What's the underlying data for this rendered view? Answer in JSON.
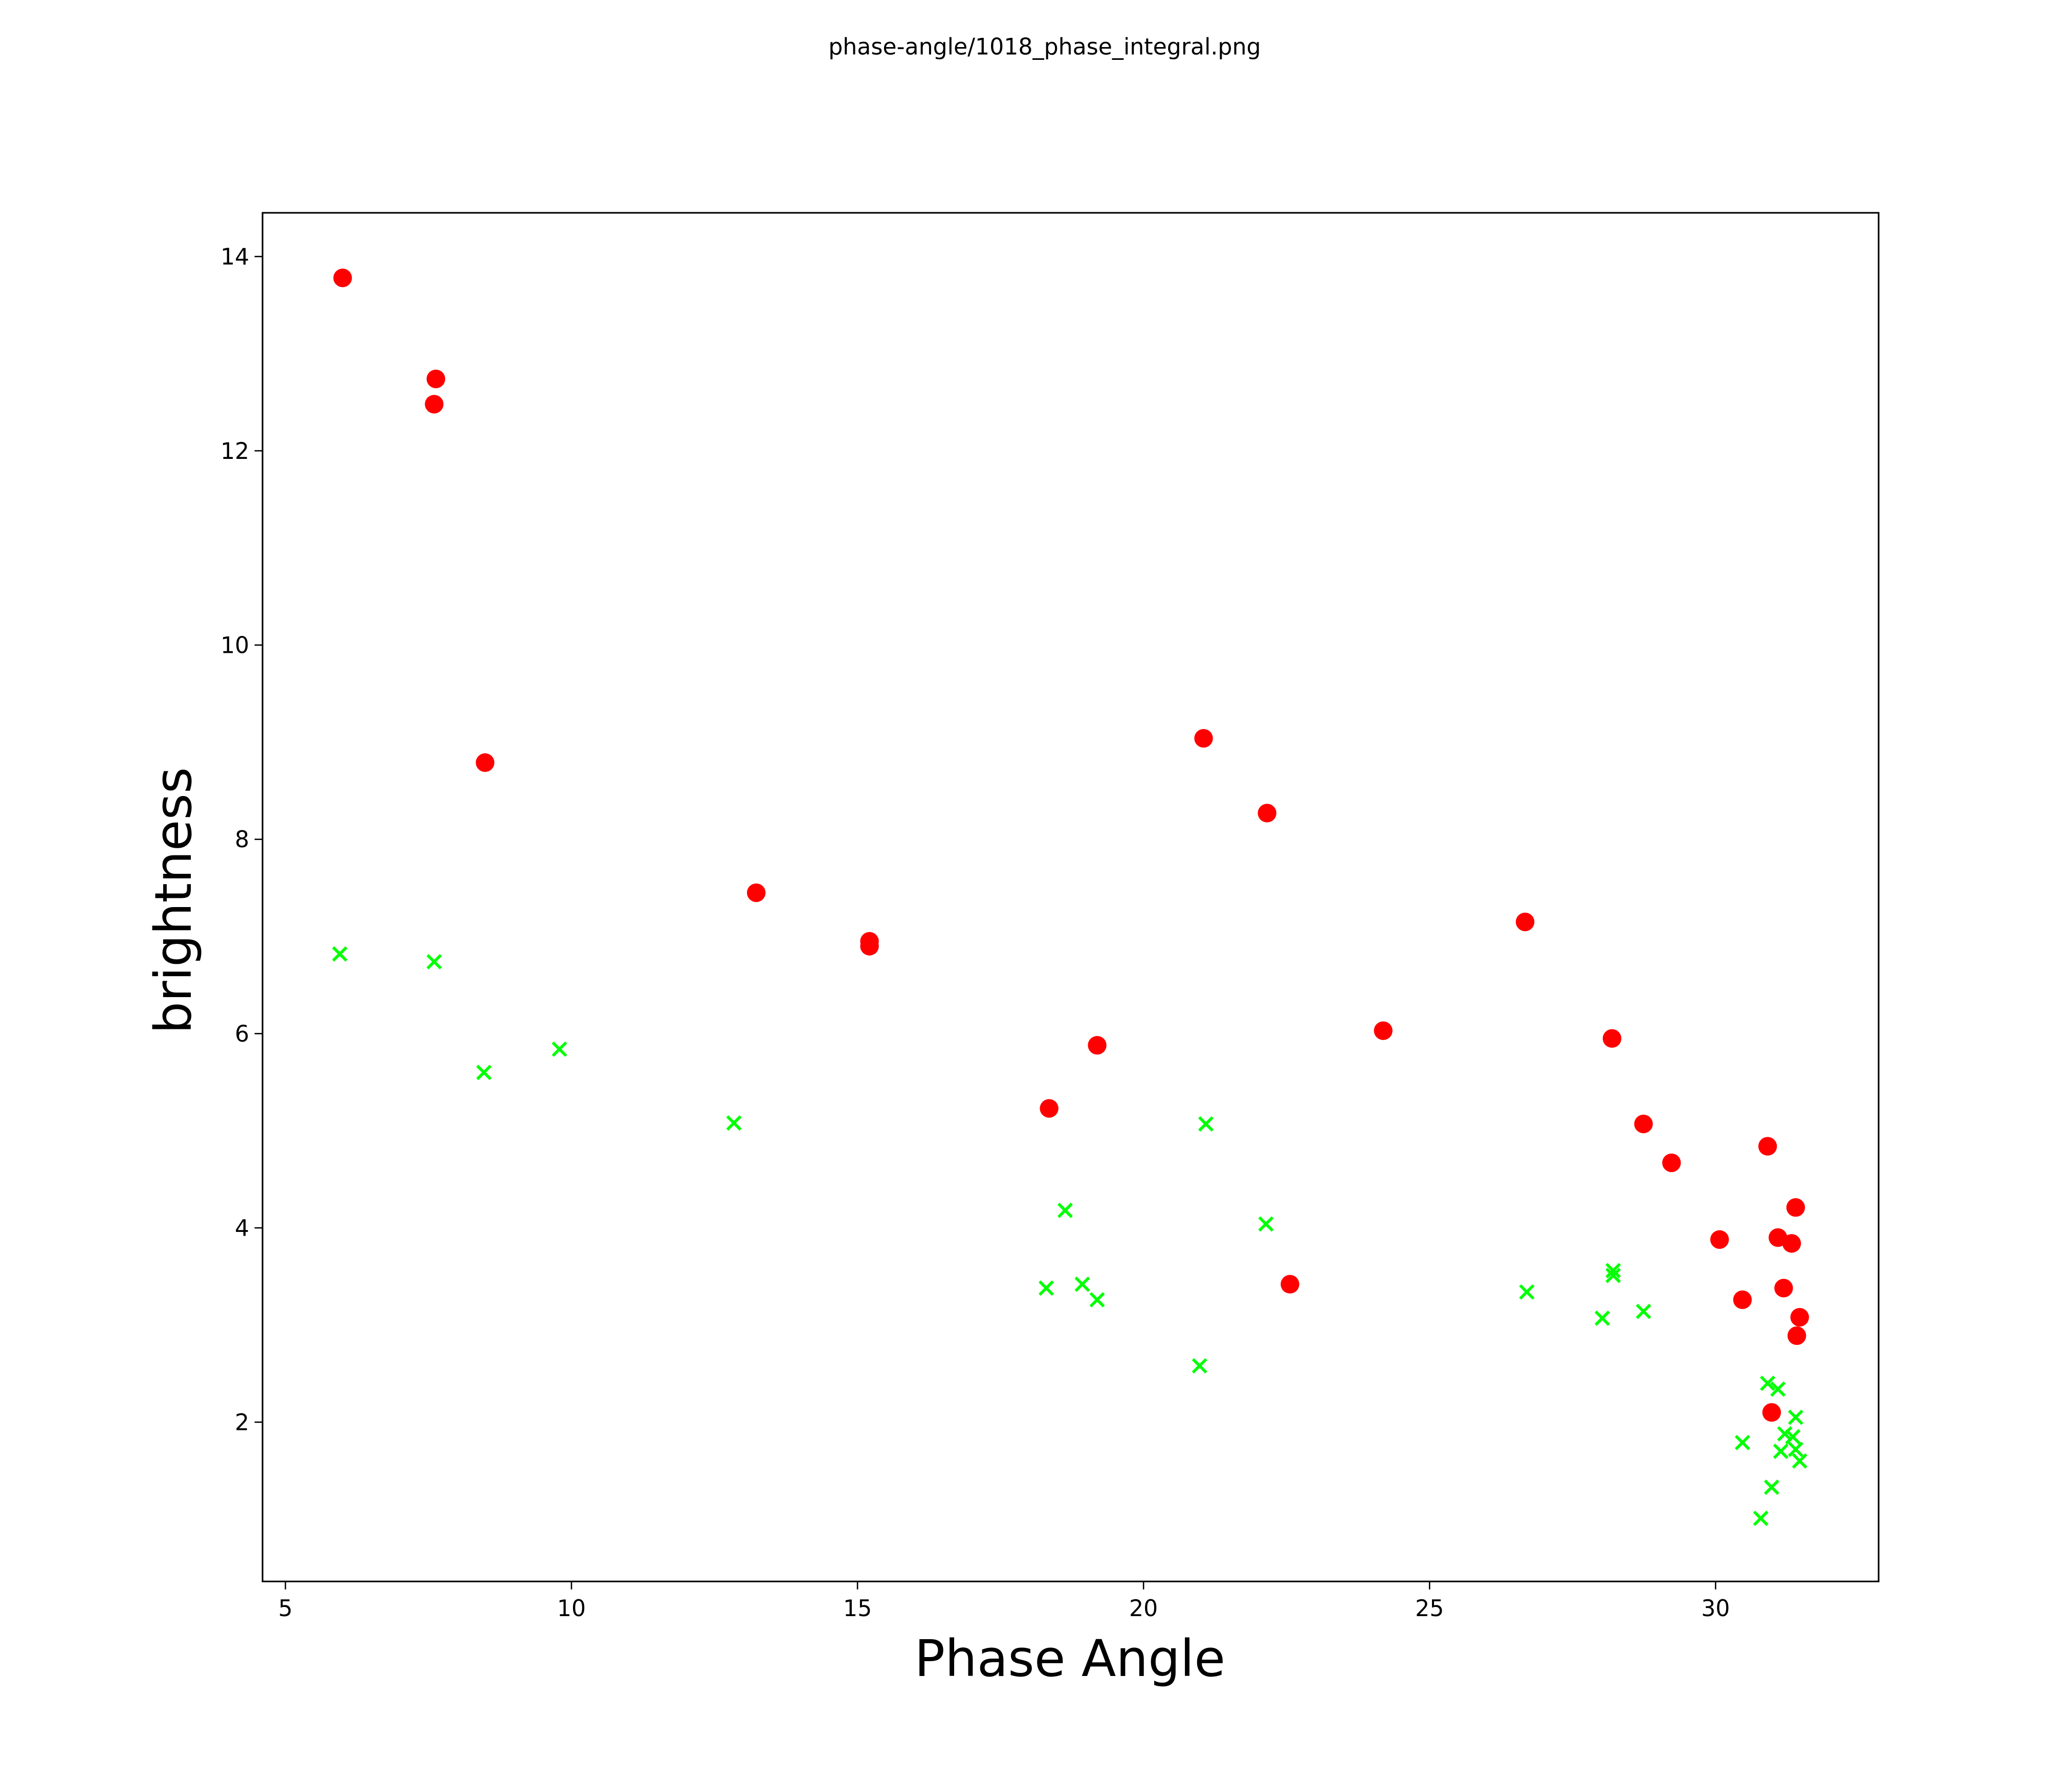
{
  "page_title": "phase-angle/1018_phase_integral.png",
  "chart_data": {
    "type": "scatter",
    "title": "",
    "xlabel": "Phase Angle",
    "ylabel": "brightness",
    "xlim": [
      4.6,
      32.85
    ],
    "ylim": [
      0.36,
      14.45
    ],
    "xticks": [
      5,
      10,
      15,
      20,
      25,
      30
    ],
    "yticks": [
      2,
      4,
      6,
      8,
      10,
      12,
      14
    ],
    "grid": false,
    "series": [
      {
        "name": "red-circles",
        "marker": "circle",
        "color": "#ff0000",
        "points": [
          [
            6.0,
            13.78
          ],
          [
            7.63,
            12.74
          ],
          [
            7.6,
            12.48
          ],
          [
            8.49,
            8.79
          ],
          [
            13.23,
            7.45
          ],
          [
            15.21,
            6.95
          ],
          [
            15.21,
            6.9
          ],
          [
            18.35,
            5.23
          ],
          [
            19.19,
            5.88
          ],
          [
            21.05,
            9.04
          ],
          [
            22.16,
            8.27
          ],
          [
            22.56,
            3.42
          ],
          [
            24.19,
            6.03
          ],
          [
            26.67,
            7.15
          ],
          [
            28.19,
            5.95
          ],
          [
            28.74,
            5.07
          ],
          [
            29.23,
            4.67
          ],
          [
            30.07,
            3.88
          ],
          [
            30.47,
            3.26
          ],
          [
            30.91,
            4.84
          ],
          [
            31.09,
            3.9
          ],
          [
            31.33,
            3.84
          ],
          [
            31.4,
            4.21
          ],
          [
            31.19,
            3.38
          ],
          [
            31.47,
            3.08
          ],
          [
            31.42,
            2.89
          ],
          [
            30.98,
            2.1
          ]
        ]
      },
      {
        "name": "green-crosses",
        "marker": "x",
        "color": "#00ff00",
        "points": [
          [
            5.95,
            6.82
          ],
          [
            7.6,
            6.74
          ],
          [
            8.47,
            5.6
          ],
          [
            9.79,
            5.84
          ],
          [
            12.84,
            5.08
          ],
          [
            18.3,
            3.38
          ],
          [
            18.63,
            4.18
          ],
          [
            18.93,
            3.42
          ],
          [
            19.19,
            3.26
          ],
          [
            20.98,
            2.58
          ],
          [
            21.09,
            5.07
          ],
          [
            22.14,
            4.04
          ],
          [
            26.7,
            3.34
          ],
          [
            28.02,
            3.07
          ],
          [
            28.21,
            3.56
          ],
          [
            28.21,
            3.51
          ],
          [
            28.74,
            3.14
          ],
          [
            30.47,
            1.79
          ],
          [
            30.79,
            1.01
          ],
          [
            30.91,
            2.4
          ],
          [
            31.09,
            2.34
          ],
          [
            30.98,
            1.33
          ],
          [
            31.4,
            2.05
          ],
          [
            31.21,
            1.88
          ],
          [
            31.35,
            1.85
          ],
          [
            31.14,
            1.7
          ],
          [
            31.4,
            1.72
          ],
          [
            31.47,
            1.6
          ]
        ]
      }
    ]
  }
}
